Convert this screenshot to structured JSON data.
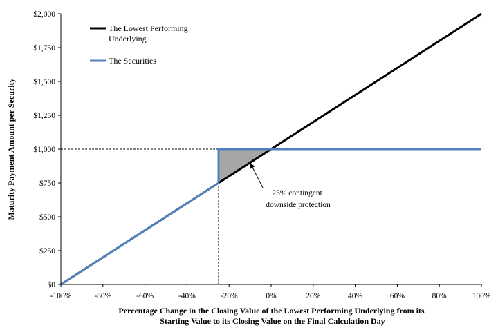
{
  "chart_data": {
    "type": "line",
    "title": "",
    "xlabel": [
      "Percentage Change in the Closing Value of the Lowest Performing Underlying from its",
      "Starting Value to its Closing Value on the Final Calculation Day"
    ],
    "ylabel": "Maturity Payment Amount per Security",
    "xlim": [
      -100,
      100
    ],
    "ylim": [
      0,
      2000
    ],
    "x_ticks": [
      -100,
      -80,
      -60,
      -40,
      -20,
      0,
      20,
      40,
      60,
      80,
      100
    ],
    "x_tick_labels": [
      "-100%",
      "-80%",
      "-60%",
      "-40%",
      "-20%",
      "0%",
      "20%",
      "40%",
      "60%",
      "80%",
      "100%"
    ],
    "y_ticks": [
      0,
      250,
      500,
      750,
      1000,
      1250,
      1500,
      1750,
      2000
    ],
    "y_tick_labels": [
      "$0",
      "$250",
      "$500",
      "$750",
      "$1,000",
      "$1,250",
      "$1,500",
      "$1,750",
      "$2,000"
    ],
    "grid": false,
    "legend_position": "top-left",
    "series": [
      {
        "name": "The Lowest Performing Underlying",
        "legend_lines": [
          "The Lowest Performing",
          "Underlying"
        ],
        "color": "#000000",
        "x": [
          -100,
          100
        ],
        "y": [
          0,
          2000
        ]
      },
      {
        "name": "The Securities",
        "legend_lines": [
          "The Securities"
        ],
        "color": "#4f81bd",
        "x": [
          -100,
          -25,
          -25,
          100
        ],
        "y": [
          0,
          750,
          1000,
          1000
        ]
      }
    ],
    "reference_lines": [
      {
        "x": [
          -100,
          -25
        ],
        "y": [
          1000,
          1000
        ],
        "style": "dashed"
      },
      {
        "x": [
          -25,
          -25
        ],
        "y": [
          0,
          1000
        ],
        "style": "dashed"
      }
    ],
    "shaded_region": {
      "x": [
        -25,
        -25,
        0
      ],
      "y": [
        750,
        1000,
        1000
      ],
      "color": "#a6a6a6"
    },
    "annotation": {
      "lines": [
        "25% contingent",
        "downside protection"
      ],
      "arrow_to": {
        "x": -10,
        "y": 900
      }
    }
  }
}
